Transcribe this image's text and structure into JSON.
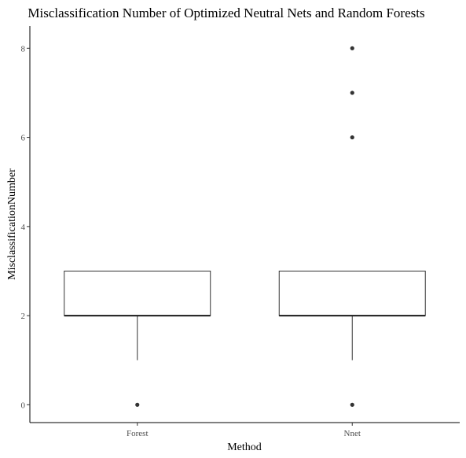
{
  "chart_data": {
    "type": "box",
    "title": "Misclassification Number of Optimized Neutral Nets and Random Forests",
    "xlabel": "Method",
    "ylabel": "MisclassificationNumber",
    "ylim": [
      -0.4,
      8.5
    ],
    "yticks": [
      0,
      2,
      4,
      6,
      8
    ],
    "grid": false,
    "categories": [
      "Forest",
      "Nnet"
    ],
    "boxes": [
      {
        "category": "Forest",
        "q1": 2,
        "median": 2,
        "q3": 3,
        "whisker_low": 1,
        "whisker_high": 3,
        "outliers": [
          0
        ]
      },
      {
        "category": "Nnet",
        "q1": 2,
        "median": 2,
        "q3": 3,
        "whisker_low": 1,
        "whisker_high": 3,
        "outliers": [
          0,
          6,
          7,
          8
        ]
      }
    ]
  }
}
